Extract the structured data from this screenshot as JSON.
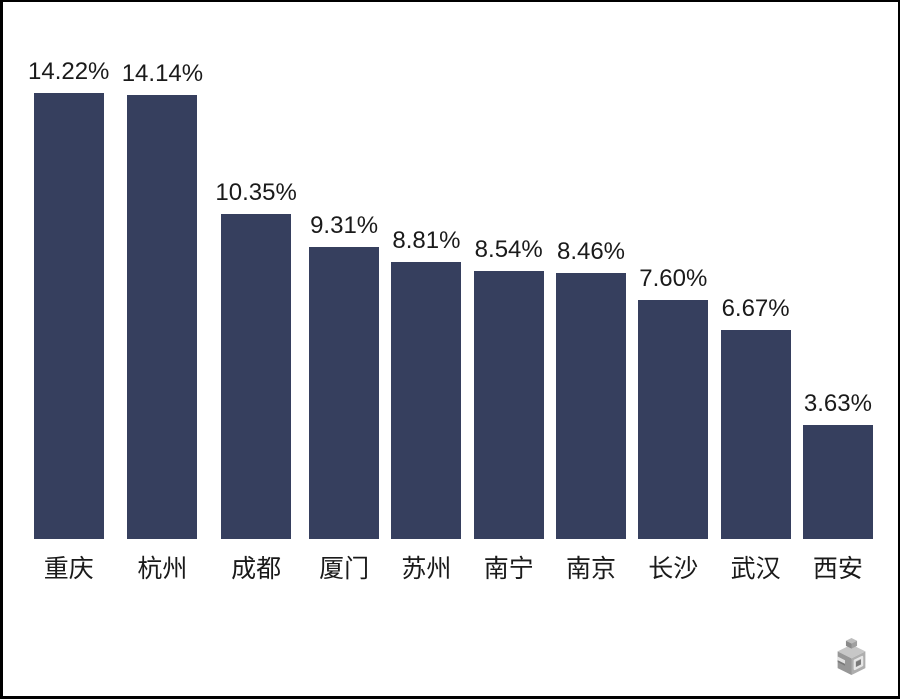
{
  "chart_data": {
    "type": "bar",
    "title": "",
    "xlabel": "",
    "ylabel": "",
    "categories": [
      "重庆",
      "杭州",
      "成都",
      "厦门",
      "苏州",
      "南宁",
      "南京",
      "长沙",
      "武汉",
      "西安"
    ],
    "values": [
      14.22,
      14.14,
      10.35,
      9.31,
      8.81,
      8.54,
      8.46,
      7.6,
      6.67,
      3.63
    ],
    "value_labels": [
      "14.22%",
      "14.14%",
      "10.35%",
      "9.31%",
      "8.81%",
      "8.54%",
      "8.46%",
      "7.60%",
      "6.67%",
      "3.63%"
    ],
    "ylim": [
      0,
      15
    ],
    "grid": false,
    "legend": false,
    "axes_visible": false,
    "bar_color": "#363F5E",
    "label_color": "#1A1A1A",
    "background_color": "#FFFFFF",
    "frame_color": "#000000"
  },
  "branding": {
    "watermark_icon": "isometric-cube-logo"
  }
}
